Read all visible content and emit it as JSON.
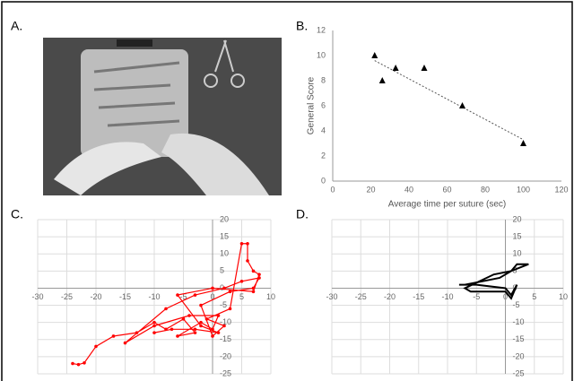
{
  "panel_labels": [
    "A.",
    "B.",
    "C.",
    "D."
  ],
  "chart_data": [
    {
      "type": "scatter",
      "x_label": "Average time per suture (sec)",
      "y_label": "General Score",
      "x": [
        22,
        26,
        33,
        48,
        68,
        100
      ],
      "values": [
        10,
        8,
        9,
        9,
        6,
        3
      ],
      "color": "#000000",
      "marker": "triangle",
      "trendline": {
        "x": [
          22,
          100
        ],
        "y": [
          9.6,
          3.3
        ]
      },
      "xlim": [
        0,
        120
      ],
      "xticks": [
        0,
        20,
        40,
        60,
        80,
        100,
        120
      ],
      "ylim": [
        0,
        12
      ],
      "yticks": [
        0,
        2,
        4,
        6,
        8,
        10,
        12
      ],
      "grid": false,
      "axes_cross_at_origin": false
    },
    {
      "type": "line",
      "color": "#ff0000",
      "markers": true,
      "x": [
        -24,
        -23,
        -22,
        -20,
        -17,
        -13,
        -10,
        -8,
        -5,
        -3,
        -6,
        -2,
        0,
        1,
        -4,
        -10,
        -15,
        -8,
        -3,
        2,
        5,
        8,
        7,
        3,
        -2,
        0,
        2,
        -1,
        3,
        5,
        6,
        6,
        7,
        8,
        7,
        0,
        -6,
        -2,
        1,
        -3,
        -7,
        -10
      ],
      "values": [
        -22,
        -22.3,
        -21.8,
        -17,
        -14,
        -13,
        -10,
        -12,
        -9,
        -13,
        -14,
        -10,
        -12,
        -8,
        -8,
        -11,
        -16,
        -6,
        -2,
        0,
        2,
        3,
        0,
        -1,
        -5,
        -14,
        -11,
        -9,
        -6,
        13,
        13,
        8,
        5,
        4,
        -1,
        0,
        -2,
        -11,
        -13,
        -12,
        -12,
        -13
      ],
      "xlim": [
        -30,
        10
      ],
      "xticks": [
        -30,
        -25,
        -20,
        -15,
        -10,
        -5,
        0,
        5,
        10
      ],
      "ylim": [
        -25,
        20
      ],
      "yticks": [
        -25,
        -20,
        -15,
        -10,
        -5,
        0,
        5,
        10,
        15,
        20
      ],
      "grid": true,
      "axes_cross_at_origin": true
    },
    {
      "type": "line",
      "color": "#000000",
      "markers": false,
      "x": [
        -7,
        -4,
        -1,
        1,
        2,
        4,
        1,
        -2,
        -7,
        -6,
        -3,
        0,
        1,
        2,
        1,
        0,
        -5,
        -8
      ],
      "values": [
        1,
        2,
        3,
        5,
        7,
        7,
        5,
        4,
        0,
        -1,
        -1,
        -1,
        -3,
        1,
        -2,
        0,
        1,
        1
      ],
      "xlim": [
        -30,
        10
      ],
      "xticks": [
        -30,
        -25,
        -20,
        -15,
        -10,
        -5,
        0,
        5,
        10
      ],
      "ylim": [
        -25,
        20
      ],
      "yticks": [
        -25,
        -20,
        -15,
        -10,
        -5,
        0,
        5,
        10,
        15,
        20
      ],
      "grid": true,
      "axes_cross_at_origin": true
    }
  ]
}
